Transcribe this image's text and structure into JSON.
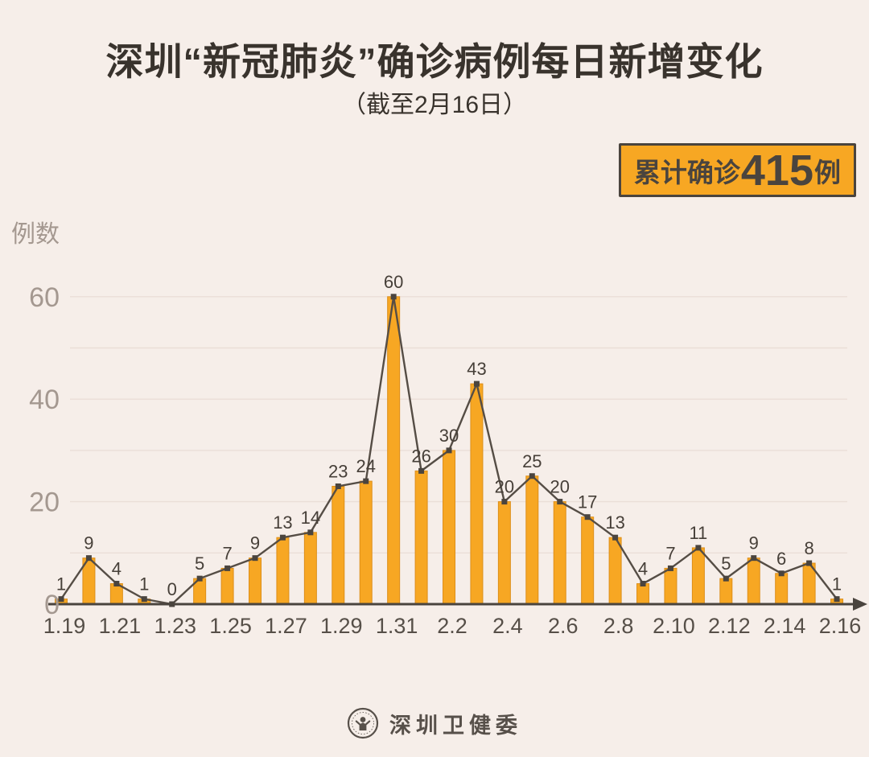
{
  "header": {
    "title": "深圳“新冠肺炎”确诊病例每日新增变化",
    "subtitle": "（截至2月16日）"
  },
  "badge": {
    "prefix": "累计确诊",
    "value": "415",
    "suffix": "例"
  },
  "footer": {
    "org_name": "深圳卫健委",
    "logo": "shenzhen-health-commission-emblem"
  },
  "chart_data": {
    "type": "bar",
    "line_overlay": true,
    "title": "深圳“新冠肺炎”确诊病例每日新增变化",
    "subtitle": "（截至2月16日）",
    "xlabel": "",
    "ylabel": "例数",
    "categories": [
      "1.19",
      "1.20",
      "1.21",
      "1.22",
      "1.23",
      "1.24",
      "1.25",
      "1.26",
      "1.27",
      "1.28",
      "1.29",
      "1.30",
      "1.31",
      "2.1",
      "2.2",
      "2.3",
      "2.4",
      "2.5",
      "2.6",
      "2.7",
      "2.8",
      "2.9",
      "2.10",
      "2.11",
      "2.12",
      "2.13",
      "2.14",
      "2.15",
      "2.16"
    ],
    "values": [
      1,
      9,
      4,
      1,
      0,
      5,
      7,
      9,
      13,
      14,
      23,
      24,
      60,
      26,
      30,
      43,
      20,
      25,
      20,
      17,
      13,
      4,
      7,
      11,
      5,
      9,
      6,
      8,
      1
    ],
    "x_tick_labels_shown": [
      "1.19",
      "1.21",
      "1.23",
      "1.25",
      "1.27",
      "1.29",
      "1.31",
      "2.2",
      "2.4",
      "2.6",
      "2.8",
      "2.10",
      "2.12",
      "2.14",
      "2.16"
    ],
    "y_ticks": [
      0,
      20,
      40,
      60
    ],
    "ylim": [
      0,
      60
    ],
    "grid": true,
    "grid_interval": 10,
    "legend": false,
    "total": 415,
    "colors": {
      "background": "#F6EEE9",
      "bar_fill": "#F7A723",
      "bar_border": "#DD8F1A",
      "line": "#554D45",
      "marker": "#4A443E",
      "value_label": "#463F38",
      "axis": "#4A443E",
      "grid_line": "#EADED8",
      "x_tick_label": "#564F48",
      "y_tick_label": "#A49890",
      "title_text": "#39332D",
      "badge_bg": "#F7A723",
      "badge_border": "#4A443E"
    }
  }
}
